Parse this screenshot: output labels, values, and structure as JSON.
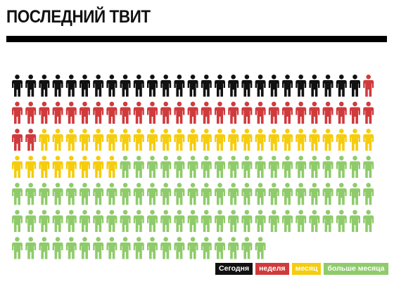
{
  "title": "ПОСЛЕДНИЙ ТВИТ",
  "chart_data": {
    "type": "pictogram",
    "unit": "person-icon",
    "columns": 27,
    "series": [
      {
        "name": "Сегодня",
        "count": 26,
        "color": "#111111"
      },
      {
        "name": "неделя",
        "count": 30,
        "color": "#d03a3c"
      },
      {
        "name": "месяц",
        "count": 33,
        "color": "#f5cc0e"
      },
      {
        "name": "больше месяца",
        "count": 92,
        "color": "#8fcb6b"
      }
    ],
    "total": 181
  },
  "legend": [
    {
      "label": "Сегодня",
      "color": "#111111"
    },
    {
      "label": "неделя",
      "color": "#d03a3c"
    },
    {
      "label": "месяц",
      "color": "#f5cc0e"
    },
    {
      "label": "больше месяца",
      "color": "#8fcb6b"
    }
  ]
}
